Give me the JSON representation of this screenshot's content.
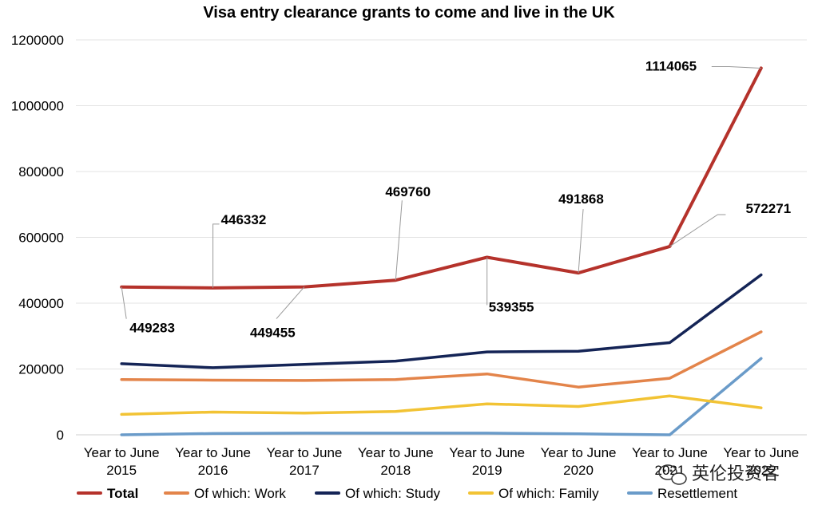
{
  "chart_data": {
    "type": "line",
    "title": "Visa entry clearance grants to come and live in the UK",
    "xlabel": "",
    "ylabel": "",
    "categories": [
      [
        "Year to June",
        "2015"
      ],
      [
        "Year to June",
        "2016"
      ],
      [
        "Year to June",
        "2017"
      ],
      [
        "Year to June",
        "2018"
      ],
      [
        "Year to June",
        "2019"
      ],
      [
        "Year to June",
        "2020"
      ],
      [
        "Year to June",
        "2021"
      ],
      [
        "Year to June",
        "2022"
      ]
    ],
    "ylim": [
      0,
      1200000
    ],
    "yticks": [
      "0",
      "200000",
      "400000",
      "600000",
      "800000",
      "1000000",
      "1200000"
    ],
    "grid": "horizontal",
    "legend_position": "bottom",
    "series": [
      {
        "name": "Total",
        "color": "#b5322b",
        "values": [
          449283,
          446332,
          449455,
          469760,
          539355,
          491868,
          572271,
          1114065
        ]
      },
      {
        "name": "Of which: Work",
        "color": "#e3844a",
        "values": [
          168000,
          166000,
          165000,
          168000,
          185000,
          145000,
          172000,
          313000
        ]
      },
      {
        "name": "Of which: Study",
        "color": "#142456",
        "values": [
          216000,
          204000,
          214000,
          224000,
          252000,
          254000,
          280000,
          486000
        ]
      },
      {
        "name": "Of which: Family",
        "color": "#f2c334",
        "values": [
          62000,
          69000,
          66000,
          71000,
          94000,
          86000,
          118000,
          82000
        ]
      },
      {
        "name": "Resettlement",
        "color": "#6a9bc9",
        "values": [
          0,
          4000,
          5000,
          5000,
          5000,
          3000,
          0,
          232000
        ]
      }
    ],
    "data_labels": [
      "449283",
      "446332",
      "449455",
      "469760",
      "539355",
      "491868",
      "572271",
      "1114065"
    ]
  },
  "watermark": {
    "text": "英伦投资客"
  }
}
